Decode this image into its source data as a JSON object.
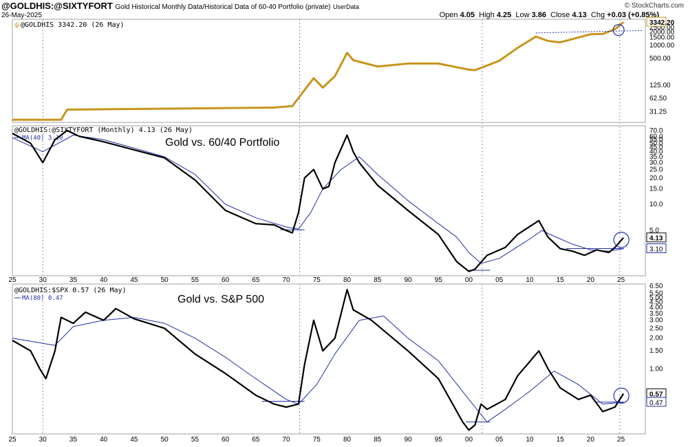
{
  "header": {
    "symbol": "@GOLDHIS:@SIXTYFORT",
    "description": "Gold Historical Monthly Data/Historical Data of 60-40 Portfolio (private)",
    "source": "UserData",
    "date": "26-May-2025",
    "open_label": "Open",
    "open": "4.05",
    "high_label": "High",
    "high": "4.25",
    "low_label": "Low",
    "low": "3.86",
    "close_label": "Close",
    "close": "4.13",
    "chg_label": "Chg",
    "chg": "+0.03 (+0.85%)",
    "watermark": "© StockCharts.com"
  },
  "colors": {
    "gold": "#c8941c",
    "price": "#000000",
    "ma": "#1f2fa8",
    "grid": "#8a8fb0",
    "frame": "#a0a0a0"
  },
  "x_ticks": [
    "25",
    "30",
    "35",
    "40",
    "45",
    "50",
    "55",
    "60",
    "65",
    "70",
    "75",
    "80",
    "85",
    "90",
    "95",
    "00",
    "05",
    "10",
    "15",
    "20",
    "25"
  ],
  "chart_data": [
    {
      "type": "line",
      "panel": "gold",
      "legend": "@GOLDHIS 3342.20 (26 May)",
      "last_value_label": "3342.20",
      "y_scale": "log",
      "y_ticks": [
        "2500.00",
        "2000.00",
        "1500.00",
        "1000.00",
        "500.00",
        "125.00",
        "62.50",
        "31.25"
      ],
      "series": [
        {
          "x": [
            1925,
            1933,
            1934,
            1968,
            1971,
            1973,
            1974.5,
            1976,
            1978,
            1980,
            1981,
            1985,
            1990,
            1995,
            2000,
            2001,
            2005,
            2008,
            2011,
            2013,
            2015,
            2020,
            2022,
            2024,
            2025.4
          ],
          "y": [
            20.67,
            20.67,
            35,
            39,
            42,
            97,
            180,
            110,
            200,
            675,
            460,
            330,
            385,
            385,
            280,
            272,
            445,
            870,
            1570,
            1250,
            1160,
            1770,
            1800,
            2300,
            3342.2
          ]
        }
      ]
    },
    {
      "type": "line",
      "panel": "gold-vs-6040",
      "legend": "@GOLDHIS:@SIXTYFORT (Monthly) 4.13 (26 May)",
      "ma_legend": "MA(40) 3.10",
      "title": "Gold vs. 60/40 Portfolio",
      "last_value_label": "4.13",
      "ma_value_label": "3.10",
      "y_scale": "log",
      "y_ticks": [
        "70.0",
        "60.0",
        "55.0",
        "50.0",
        "45.0",
        "40.0",
        "35.0",
        "30.0",
        "25.0",
        "20.0",
        "15.0",
        "10.0",
        "5.0"
      ],
      "series": [
        {
          "name": "@GOLDHIS:@SIXTYFORT",
          "x": [
            1925,
            1928,
            1930,
            1932,
            1934,
            1936,
            1940,
            1945,
            1950,
            1955,
            1960,
            1965,
            1968,
            1970,
            1971,
            1972,
            1973,
            1974.5,
            1976,
            1977,
            1978,
            1980,
            1981,
            1982,
            1985,
            1990,
            1995,
            1998,
            2000,
            2001,
            2003,
            2006,
            2008,
            2011.5,
            2013,
            2015,
            2017,
            2019,
            2021,
            2023,
            2024,
            2025.4
          ],
          "y": [
            65,
            50,
            30,
            55,
            70,
            60,
            52,
            42,
            34,
            19,
            8.5,
            6,
            5.8,
            5,
            4.7,
            8,
            20,
            25,
            15,
            16,
            30,
            62,
            40,
            30,
            16.5,
            8.5,
            4.5,
            2.2,
            1.7,
            1.8,
            2.6,
            3.2,
            4.5,
            6.5,
            4.2,
            3.1,
            2.9,
            2.6,
            3.0,
            2.8,
            3.2,
            4.13
          ]
        },
        {
          "name": "MA(40)",
          "x": [
            1925,
            1930,
            1935,
            1940,
            1945,
            1950,
            1955,
            1960,
            1965,
            1970,
            1972,
            1974,
            1976,
            1979,
            1982,
            1985,
            1990,
            1995,
            1998,
            2000,
            2002,
            2005,
            2010,
            2012,
            2014,
            2017,
            2020,
            2023,
            2025.4
          ],
          "y": [
            58,
            40,
            62,
            55,
            44,
            35,
            22,
            10,
            7,
            5.5,
            5.2,
            8,
            15,
            25,
            35,
            22,
            11,
            6,
            4.2,
            2.8,
            2.1,
            2.4,
            4,
            5,
            4.3,
            3.5,
            3.0,
            2.9,
            3.1
          ]
        }
      ],
      "hlines": [
        {
          "x": [
            1969,
            1973
          ],
          "y": [
            5.1,
            5.1
          ]
        },
        {
          "x": [
            2000,
            2003.5
          ],
          "y": [
            1.75,
            1.75
          ]
        },
        {
          "x": [
            2016,
            2025.5
          ],
          "y": [
            3.1,
            3.1
          ]
        }
      ]
    },
    {
      "type": "line",
      "panel": "gold-vs-spx",
      "legend": "@GOLDHIS:$SPX 0.57 (26 May)",
      "ma_legend": "MA(80) 0.47",
      "title": "Gold vs. S&P 500",
      "last_value_label": "0.57",
      "ma_value_label": "0.47",
      "y_scale": "log",
      "y_ticks": [
        "6.50",
        "5.50",
        "5.00",
        "4.50",
        "4.00",
        "3.50",
        "3.00",
        "2.50",
        "2.00",
        "1.50",
        "1.00"
      ],
      "series": [
        {
          "name": "@GOLDHIS:$SPX",
          "x": [
            1925,
            1928,
            1929.5,
            1930.5,
            1932,
            1933,
            1935,
            1937,
            1940,
            1942,
            1945,
            1950,
            1955,
            1960,
            1965,
            1968,
            1970,
            1972,
            1973,
            1974.5,
            1976,
            1978,
            1980,
            1981,
            1984,
            1990,
            1995,
            1999,
            2000,
            2001,
            2002,
            2003,
            2006,
            2008,
            2011.5,
            2013,
            2015,
            2018,
            2020,
            2022,
            2024,
            2025.4
          ],
          "y": [
            1.9,
            1.5,
            1.0,
            0.8,
            1.5,
            3.2,
            2.8,
            3.6,
            3.0,
            3.9,
            3.1,
            2.5,
            1.4,
            0.9,
            0.55,
            0.45,
            0.42,
            0.45,
            1.1,
            3.0,
            1.5,
            2.0,
            6.0,
            3.8,
            3.0,
            1.5,
            0.8,
            0.3,
            0.25,
            0.28,
            0.45,
            0.4,
            0.5,
            0.85,
            1.5,
            1.0,
            0.65,
            0.5,
            0.55,
            0.38,
            0.42,
            0.57
          ]
        },
        {
          "name": "MA(80)",
          "x": [
            1925,
            1932,
            1935,
            1940,
            1945,
            1950,
            1955,
            1960,
            1965,
            1970,
            1972,
            1975,
            1978,
            1982,
            1986,
            1990,
            1995,
            2000,
            2003,
            2006,
            2010,
            2014,
            2018,
            2022,
            2025.4
          ],
          "y": [
            2.0,
            1.7,
            2.6,
            3.0,
            3.2,
            2.8,
            2.0,
            1.3,
            0.8,
            0.5,
            0.45,
            0.7,
            1.4,
            3.0,
            3.3,
            2.0,
            1.2,
            0.5,
            0.3,
            0.4,
            0.6,
            0.95,
            0.7,
            0.45,
            0.47
          ]
        }
      ],
      "hlines": [
        {
          "x": [
            1966,
            1973
          ],
          "y": [
            0.48,
            0.48
          ]
        },
        {
          "x": [
            1999.5,
            2003.5
          ],
          "y": [
            0.3,
            0.3
          ]
        },
        {
          "x": [
            2021,
            2025.5
          ],
          "y": [
            0.47,
            0.47
          ]
        }
      ]
    }
  ]
}
